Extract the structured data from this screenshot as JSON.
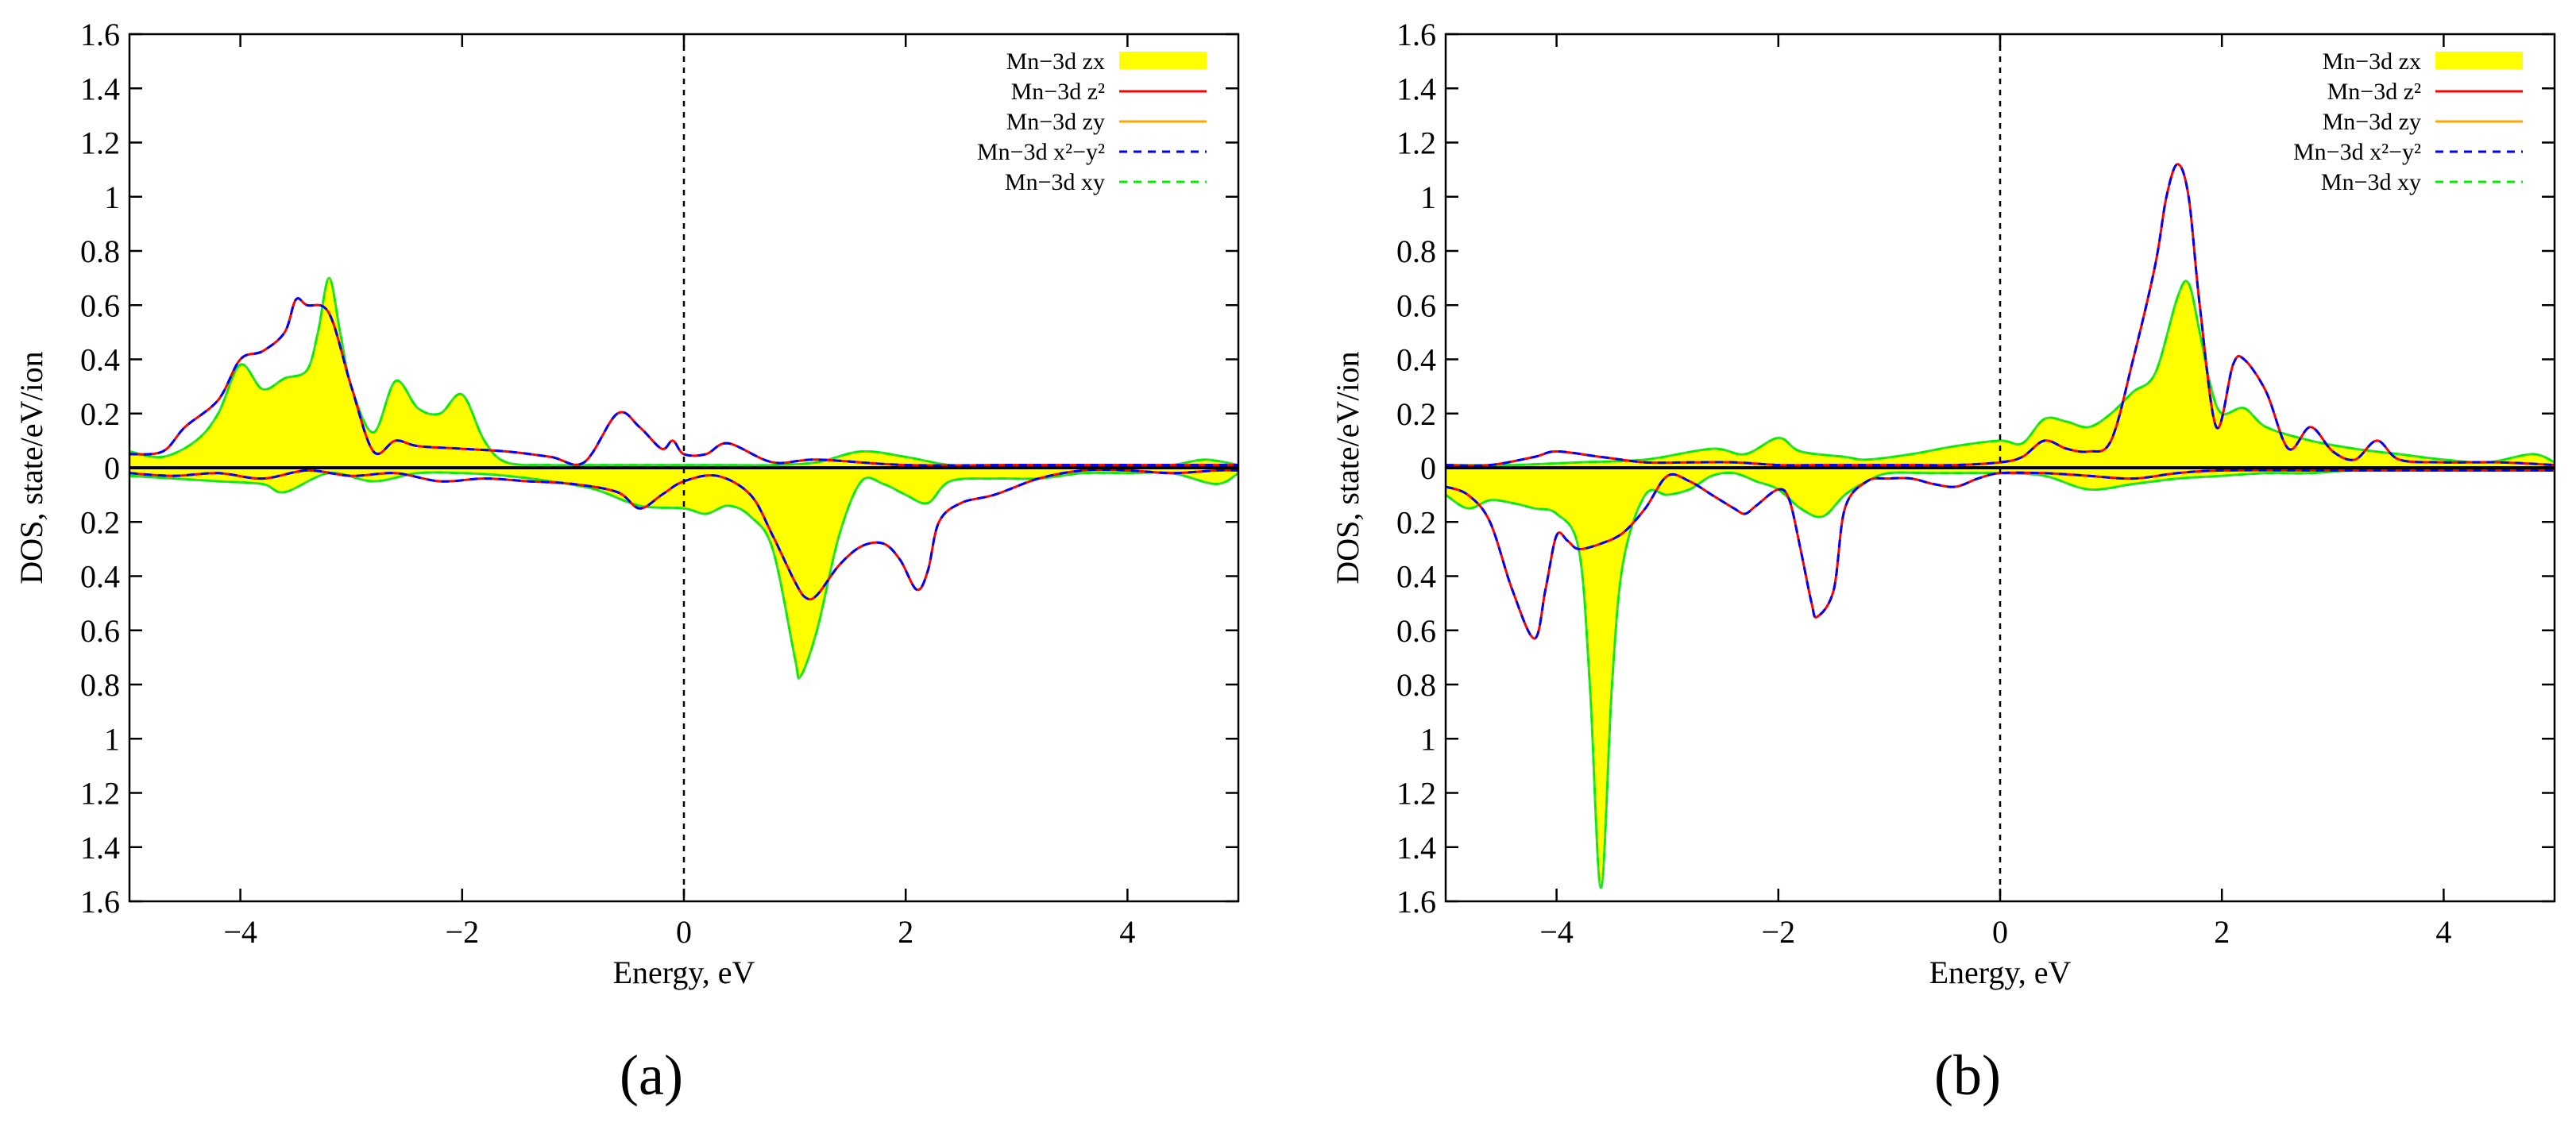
{
  "figure": {
    "panels": [
      "(a)",
      "(b)"
    ]
  },
  "colors": {
    "zx_fill": "#ffff00",
    "zx_edge": "#33dd33",
    "z2": "#ff0000",
    "zy": "#ffa500",
    "x2y2": "#0000ff",
    "xy": "#00ee00",
    "zero_line": "#000000",
    "fermi_line": "#000000"
  },
  "chart_data": [
    {
      "type": "line",
      "caption": "(a)",
      "xlabel": "Energy, eV",
      "ylabel": "DOS, state/eV/ion",
      "xlim": [
        -5,
        5
      ],
      "ylim": [
        -1.6,
        1.6
      ],
      "xticks": [
        -4,
        -2,
        0,
        2,
        4
      ],
      "xtick_labels": [
        "−4",
        "−2",
        "0",
        "2",
        "4"
      ],
      "yticks": [
        1.6,
        1.4,
        1.2,
        1,
        0.8,
        0.6,
        0.4,
        0.2,
        0,
        -0.2,
        -0.4,
        -0.6,
        -0.8,
        -1,
        -1.2,
        -1.4,
        -1.6
      ],
      "ytick_labels": [
        "1.6",
        "1.4",
        "1.2",
        "1",
        "0.8",
        "0.6",
        "0.4",
        "0.2",
        "0",
        "0.2",
        "0.4",
        "0.6",
        "0.8",
        "1",
        "1.2",
        "1.4",
        "1.6"
      ],
      "fermi_level": 0,
      "legend": {
        "position": "top-right",
        "entries": [
          {
            "key": "zx",
            "label": "Mn−3d zx",
            "style": "fill"
          },
          {
            "key": "z2",
            "label": "Mn−3d z²",
            "style": "solid"
          },
          {
            "key": "zy",
            "label": "Mn−3d zy",
            "style": "solid"
          },
          {
            "key": "x2y2",
            "label": "Mn−3d x²−y²",
            "style": "dashed"
          },
          {
            "key": "xy",
            "label": "Mn−3d xy",
            "style": "dashed"
          }
        ]
      },
      "series": [
        {
          "name": "Mn−3d zx / xy (spin up)",
          "keys": [
            "zx",
            "xy"
          ],
          "x": [
            -5,
            -4.7,
            -4.4,
            -4.2,
            -4,
            -3.8,
            -3.6,
            -3.4,
            -3.3,
            -3.2,
            -3.1,
            -3,
            -2.8,
            -2.6,
            -2.4,
            -2.2,
            -2,
            -1.8,
            -1.6,
            -1.2,
            -0.8,
            -0.4,
            0,
            0.4,
            0.8,
            1.2,
            1.6,
            2,
            2.4,
            2.8,
            3.2,
            3.6,
            4,
            4.4,
            4.7,
            5
          ],
          "y": [
            0.06,
            0.04,
            0.1,
            0.2,
            0.38,
            0.29,
            0.33,
            0.36,
            0.5,
            0.7,
            0.5,
            0.3,
            0.13,
            0.32,
            0.22,
            0.2,
            0.27,
            0.1,
            0.02,
            0.01,
            0.01,
            0.01,
            0.01,
            0.01,
            0.01,
            0.02,
            0.06,
            0.04,
            0.01,
            0.01,
            0.01,
            0.01,
            0.01,
            0.01,
            0.03,
            0.01
          ]
        },
        {
          "name": "Mn−3d zx / xy (spin down)",
          "keys": [
            "zx",
            "xy"
          ],
          "x": [
            -5,
            -4.6,
            -4.2,
            -3.8,
            -3.6,
            -3.2,
            -2.8,
            -2.4,
            -2,
            -1.6,
            -1.2,
            -0.8,
            -0.4,
            0,
            0.2,
            0.4,
            0.6,
            0.8,
            1,
            1.05,
            1.2,
            1.4,
            1.6,
            1.8,
            2,
            2.2,
            2.4,
            2.8,
            3.2,
            3.6,
            4,
            4.4,
            4.8,
            5
          ],
          "y": [
            -0.03,
            -0.04,
            -0.05,
            -0.06,
            -0.09,
            -0.02,
            -0.05,
            -0.02,
            -0.02,
            -0.03,
            -0.05,
            -0.08,
            -0.14,
            -0.15,
            -0.17,
            -0.14,
            -0.18,
            -0.3,
            -0.7,
            -0.77,
            -0.6,
            -0.25,
            -0.05,
            -0.06,
            -0.1,
            -0.13,
            -0.05,
            -0.04,
            -0.04,
            -0.02,
            -0.02,
            -0.02,
            -0.06,
            -0.02
          ]
        },
        {
          "name": "Mn−3d z² / x²−y² (spin up)",
          "keys": [
            "z2",
            "x2y2"
          ],
          "x": [
            -5,
            -4.7,
            -4.5,
            -4.2,
            -4,
            -3.8,
            -3.6,
            -3.5,
            -3.4,
            -3.2,
            -3,
            -2.8,
            -2.6,
            -2.4,
            -2,
            -1.6,
            -1.2,
            -0.9,
            -0.6,
            -0.4,
            -0.2,
            -0.1,
            0,
            0.2,
            0.4,
            0.8,
            1.2,
            2,
            3,
            4,
            5
          ],
          "y": [
            0.05,
            0.06,
            0.15,
            0.25,
            0.4,
            0.43,
            0.5,
            0.62,
            0.6,
            0.57,
            0.3,
            0.06,
            0.1,
            0.08,
            0.07,
            0.06,
            0.04,
            0.02,
            0.2,
            0.15,
            0.07,
            0.1,
            0.05,
            0.05,
            0.09,
            0.02,
            0.03,
            0.01,
            0.01,
            0.01,
            0.01
          ]
        },
        {
          "name": "Mn−3d z² / x²−y² (spin down)",
          "keys": [
            "z2",
            "x2y2"
          ],
          "x": [
            -5,
            -4.6,
            -4.2,
            -3.8,
            -3.4,
            -3,
            -2.6,
            -2.2,
            -1.8,
            -1.4,
            -1,
            -0.6,
            -0.4,
            -0.2,
            0,
            0.3,
            0.6,
            0.8,
            1,
            1.1,
            1.2,
            1.4,
            1.6,
            1.8,
            1.95,
            2.1,
            2.2,
            2.3,
            2.5,
            2.8,
            3.2,
            3.6,
            4,
            4.4,
            4.8,
            5
          ],
          "y": [
            -0.02,
            -0.03,
            -0.02,
            -0.04,
            -0.01,
            -0.03,
            -0.02,
            -0.05,
            -0.04,
            -0.05,
            -0.06,
            -0.09,
            -0.15,
            -0.1,
            -0.05,
            -0.03,
            -0.1,
            -0.25,
            -0.42,
            -0.48,
            -0.47,
            -0.36,
            -0.29,
            -0.28,
            -0.34,
            -0.45,
            -0.38,
            -0.2,
            -0.13,
            -0.1,
            -0.04,
            -0.01,
            -0.01,
            -0.02,
            -0.01,
            -0.01
          ]
        },
        {
          "name": "Mn−3d zy",
          "keys": [
            "zy"
          ],
          "x": [
            -5,
            5
          ],
          "y": [
            0.0,
            0.0
          ]
        }
      ]
    },
    {
      "type": "line",
      "caption": "(b)",
      "xlabel": "Energy, eV",
      "ylabel": "DOS, state/eV/ion",
      "xlim": [
        -5,
        5
      ],
      "ylim": [
        -1.6,
        1.6
      ],
      "xticks": [
        -4,
        -2,
        0,
        2,
        4
      ],
      "xtick_labels": [
        "−4",
        "−2",
        "0",
        "2",
        "4"
      ],
      "yticks": [
        1.6,
        1.4,
        1.2,
        1,
        0.8,
        0.6,
        0.4,
        0.2,
        0,
        -0.2,
        -0.4,
        -0.6,
        -0.8,
        -1,
        -1.2,
        -1.4,
        -1.6
      ],
      "ytick_labels": [
        "1.6",
        "1.4",
        "1.2",
        "1",
        "0.8",
        "0.6",
        "0.4",
        "0.2",
        "0",
        "0.2",
        "0.4",
        "0.6",
        "0.8",
        "1",
        "1.2",
        "1.4",
        "1.6"
      ],
      "fermi_level": 0,
      "legend": {
        "position": "top-right",
        "entries": [
          {
            "key": "zx",
            "label": "Mn−3d zx",
            "style": "fill"
          },
          {
            "key": "z2",
            "label": "Mn−3d z²",
            "style": "solid"
          },
          {
            "key": "zy",
            "label": "Mn−3d zy",
            "style": "solid"
          },
          {
            "key": "x2y2",
            "label": "Mn−3d x²−y²",
            "style": "dashed"
          },
          {
            "key": "xy",
            "label": "Mn−3d xy",
            "style": "dashed"
          }
        ]
      },
      "series": [
        {
          "name": "Mn−3d zx / xy (spin up)",
          "keys": [
            "zx",
            "xy"
          ],
          "x": [
            -5,
            -4.4,
            -3.8,
            -3.2,
            -2.6,
            -2.3,
            -2,
            -1.8,
            -1.4,
            -1.2,
            -0.8,
            -0.4,
            0,
            0.2,
            0.4,
            0.6,
            0.8,
            1,
            1.2,
            1.4,
            1.6,
            1.7,
            1.8,
            1.9,
            2,
            2.2,
            2.4,
            2.8,
            3.2,
            3.6,
            4,
            4.4,
            4.8,
            5
          ],
          "y": [
            0.01,
            0.01,
            0.02,
            0.03,
            0.07,
            0.05,
            0.11,
            0.06,
            0.04,
            0.03,
            0.05,
            0.08,
            0.1,
            0.09,
            0.18,
            0.17,
            0.15,
            0.2,
            0.28,
            0.35,
            0.63,
            0.68,
            0.5,
            0.3,
            0.2,
            0.22,
            0.15,
            0.1,
            0.07,
            0.05,
            0.03,
            0.02,
            0.05,
            0.02
          ]
        },
        {
          "name": "Mn−3d zx / xy (spin down)",
          "keys": [
            "zx",
            "xy"
          ],
          "x": [
            -5,
            -4.8,
            -4.6,
            -4.4,
            -4.2,
            -4,
            -3.8,
            -3.7,
            -3.6,
            -3.5,
            -3.4,
            -3.2,
            -3,
            -2.8,
            -2.6,
            -2.4,
            -2.2,
            -2,
            -1.8,
            -1.6,
            -1.4,
            -1.2,
            -1,
            -0.6,
            0,
            0.4,
            0.8,
            1.2,
            1.6,
            2,
            2.4,
            2.8,
            3.2,
            4,
            5
          ],
          "y": [
            -0.1,
            -0.15,
            -0.12,
            -0.13,
            -0.15,
            -0.17,
            -0.3,
            -0.8,
            -1.55,
            -0.8,
            -0.35,
            -0.1,
            -0.1,
            -0.08,
            -0.03,
            -0.02,
            -0.05,
            -0.08,
            -0.15,
            -0.18,
            -0.1,
            -0.05,
            -0.02,
            -0.02,
            -0.02,
            -0.03,
            -0.08,
            -0.06,
            -0.04,
            -0.03,
            -0.02,
            -0.02,
            -0.01,
            -0.01,
            -0.01
          ]
        },
        {
          "name": "Mn−3d z² / x²−y² (spin up)",
          "keys": [
            "z2",
            "x2y2"
          ],
          "x": [
            -5,
            -4.6,
            -4.2,
            -4,
            -3.6,
            -3.2,
            -2.8,
            -2.4,
            -2,
            -1.6,
            -1.2,
            -0.8,
            -0.4,
            0,
            0.2,
            0.4,
            0.6,
            0.8,
            1,
            1.2,
            1.4,
            1.5,
            1.6,
            1.7,
            1.8,
            1.95,
            2.1,
            2.2,
            2.4,
            2.6,
            2.8,
            3,
            3.2,
            3.4,
            3.6,
            4,
            4.5,
            5
          ],
          "y": [
            0.01,
            0.01,
            0.04,
            0.06,
            0.04,
            0.02,
            0.02,
            0.02,
            0.01,
            0.01,
            0.01,
            0.01,
            0.01,
            0.02,
            0.04,
            0.1,
            0.07,
            0.06,
            0.1,
            0.4,
            0.75,
            1.0,
            1.12,
            1.0,
            0.6,
            0.15,
            0.38,
            0.4,
            0.28,
            0.07,
            0.15,
            0.06,
            0.03,
            0.1,
            0.03,
            0.02,
            0.02,
            0.01
          ]
        },
        {
          "name": "Mn−3d z² / x²−y² (spin down)",
          "keys": [
            "z2",
            "x2y2"
          ],
          "x": [
            -5,
            -4.8,
            -4.6,
            -4.4,
            -4.2,
            -4.1,
            -4,
            -3.9,
            -3.8,
            -3.6,
            -3.4,
            -3.2,
            -3,
            -2.8,
            -2.6,
            -2.4,
            -2.3,
            -2.2,
            -2,
            -1.9,
            -1.8,
            -1.7,
            -1.65,
            -1.5,
            -1.4,
            -1.2,
            -1,
            -0.8,
            -0.6,
            -0.4,
            -0.2,
            0,
            0.4,
            0.8,
            1.2,
            1.6,
            2,
            3,
            4,
            5
          ],
          "y": [
            -0.07,
            -0.1,
            -0.2,
            -0.45,
            -0.63,
            -0.45,
            -0.25,
            -0.27,
            -0.3,
            -0.28,
            -0.24,
            -0.15,
            -0.03,
            -0.05,
            -0.1,
            -0.15,
            -0.17,
            -0.14,
            -0.08,
            -0.12,
            -0.3,
            -0.5,
            -0.55,
            -0.45,
            -0.15,
            -0.05,
            -0.04,
            -0.04,
            -0.06,
            -0.07,
            -0.04,
            -0.02,
            -0.02,
            -0.03,
            -0.04,
            -0.02,
            -0.01,
            -0.01,
            -0.01,
            -0.01
          ]
        },
        {
          "name": "Mn−3d zy",
          "keys": [
            "zy"
          ],
          "x": [
            -5,
            5
          ],
          "y": [
            0.0,
            0.0
          ]
        }
      ]
    }
  ]
}
